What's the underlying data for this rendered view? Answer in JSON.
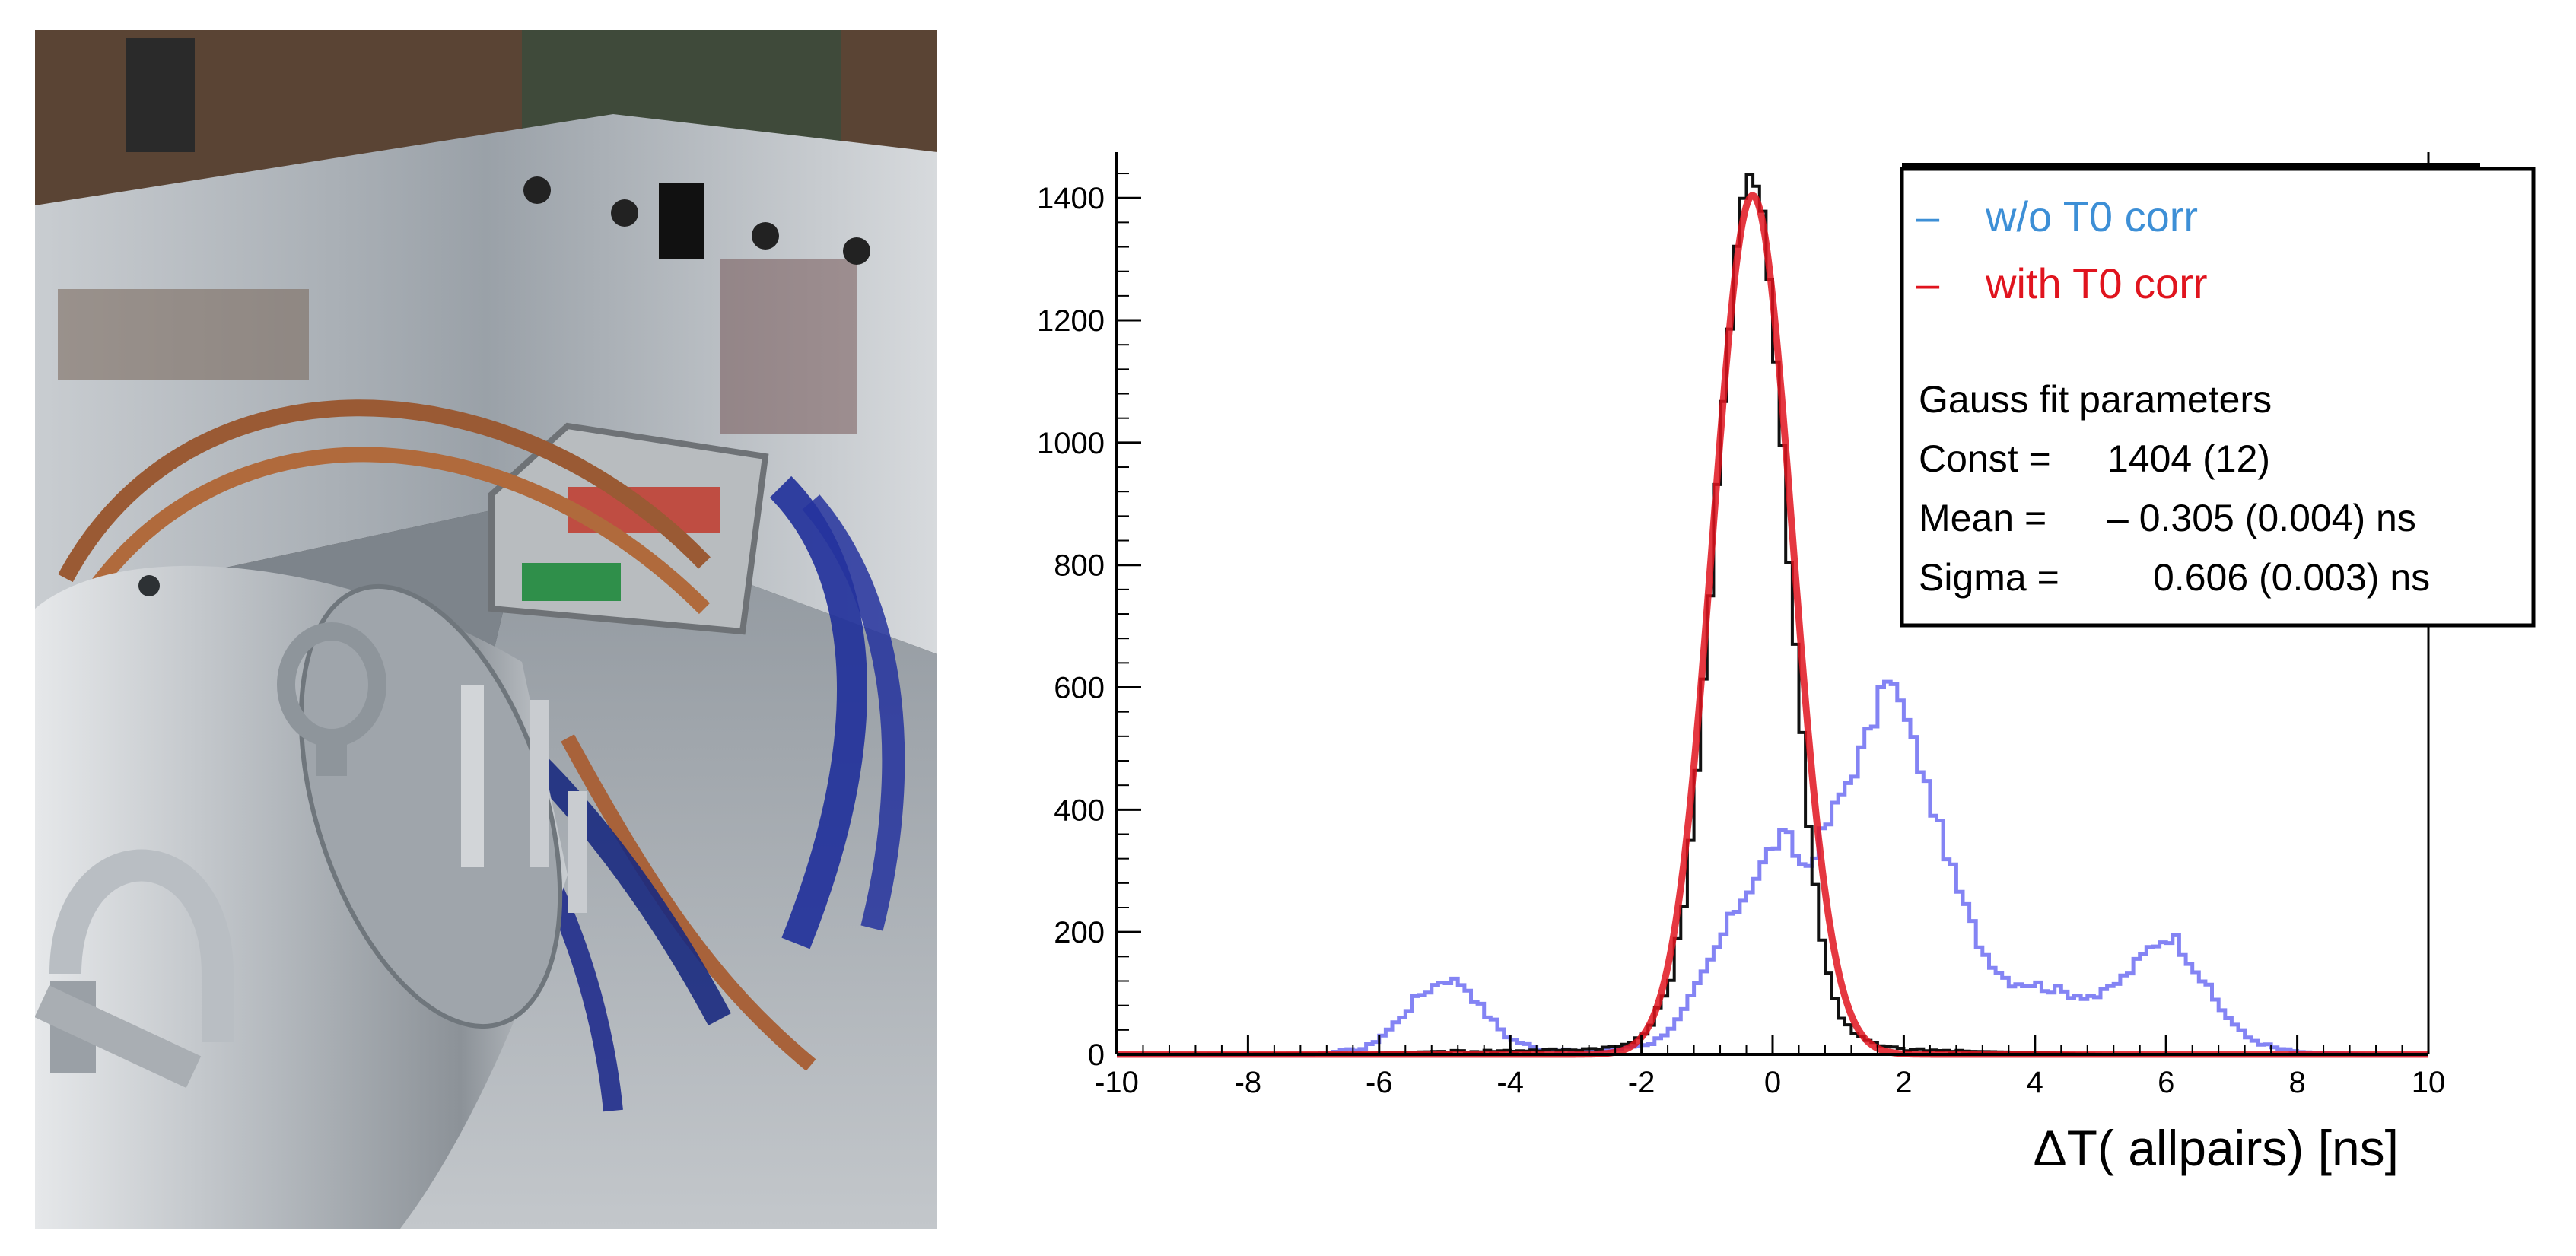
{
  "photo": {
    "icon": "detector-apparatus-photo-icon"
  },
  "chart_data": {
    "type": "line",
    "title": "",
    "xlabel": "ΔT( allpairs) [ns]",
    "ylabel": "",
    "xlim": [
      -10,
      10
    ],
    "ylim": [
      0,
      1450
    ],
    "xticks": [
      -10,
      -8,
      -6,
      -4,
      -2,
      0,
      2,
      4,
      6,
      8,
      10
    ],
    "yticks": [
      0,
      200,
      400,
      600,
      800,
      1000,
      1200,
      1400
    ],
    "grid": false,
    "legend_position": "top-right",
    "legend": [
      {
        "label": "w/o  T0 corr",
        "color": "#3d8fd6"
      },
      {
        "label": "with T0 corr",
        "color": "#e0141e"
      }
    ],
    "stats": {
      "heading": "Gauss fit parameters",
      "lines": [
        {
          "label": "Const =",
          "value": "1404 (12)"
        },
        {
          "label": "Mean =",
          "value": "– 0.305 (0.004) ns"
        },
        {
          "label": "Sigma =",
          "value": "0.606 (0.003) ns"
        }
      ]
    },
    "series": [
      {
        "name": "w/o  T0 corr",
        "color": "#6f6ff2",
        "x": [
          -10,
          -7,
          -6.2,
          -5.8,
          -5.4,
          -5.0,
          -4.7,
          -4.4,
          -4.0,
          -3.6,
          -3.0,
          -2.4,
          -1.8,
          -1.4,
          -1.0,
          -0.6,
          -0.2,
          0.0,
          0.2,
          0.5,
          0.9,
          1.3,
          1.6,
          1.75,
          2.0,
          2.4,
          2.8,
          3.2,
          3.6,
          4.0,
          4.5,
          5.0,
          5.4,
          5.8,
          6.1,
          6.4,
          6.8,
          7.2,
          7.6,
          8.0,
          9.0,
          10
        ],
        "y": [
          0,
          0,
          10,
          45,
          95,
          125,
          115,
          70,
          25,
          10,
          5,
          8,
          20,
          60,
          140,
          230,
          300,
          340,
          360,
          300,
          390,
          480,
          560,
          625,
          560,
          420,
          280,
          170,
          120,
          115,
          100,
          95,
          130,
          180,
          195,
          150,
          80,
          30,
          12,
          4,
          0,
          0
        ]
      },
      {
        "name": "data",
        "color": "#111111",
        "x": [
          -10,
          -6,
          -5,
          -4,
          -3,
          -2.4,
          -2.0,
          -1.6,
          -1.3,
          -1.0,
          -0.8,
          -0.6,
          -0.45,
          -0.3,
          -0.15,
          0.0,
          0.2,
          0.4,
          0.6,
          0.8,
          1.0,
          1.3,
          1.6,
          2.0,
          3.0,
          4.0,
          5.0,
          10
        ],
        "y": [
          0,
          2,
          5,
          6,
          8,
          12,
          25,
          100,
          280,
          660,
          1000,
          1280,
          1420,
          1445,
          1380,
          1220,
          900,
          590,
          320,
          150,
          70,
          30,
          15,
          8,
          5,
          3,
          0,
          0
        ]
      },
      {
        "name": "with T0 corr",
        "color": "#e0141e",
        "fit": "gauss",
        "const": 1404,
        "mean": -0.305,
        "sigma": 0.606,
        "x_range": [
          -10,
          10
        ]
      }
    ]
  }
}
